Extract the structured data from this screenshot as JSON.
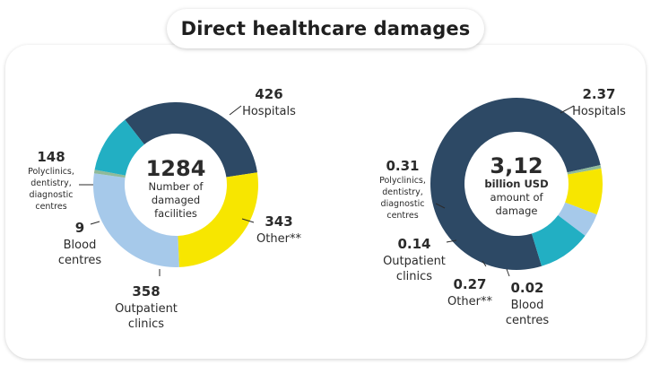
{
  "title": "Direct healthcare damages",
  "colors": {
    "hospitals": "#2d4965",
    "other": "#f7e600",
    "outpatient": "#a6c9ea",
    "blood": "#8fba9a",
    "polyclinics": "#22afc3"
  },
  "chart_data": [
    {
      "type": "pie",
      "center": {
        "value": "1284",
        "label_lines": [
          "Number of",
          "damaged",
          "facilities"
        ]
      },
      "slices": [
        {
          "key": "hospitals",
          "value": 426,
          "value_label": "426",
          "label_lines": [
            "Hospitals"
          ]
        },
        {
          "key": "other",
          "value": 343,
          "value_label": "343",
          "label_lines": [
            "Other**"
          ]
        },
        {
          "key": "outpatient",
          "value": 358,
          "value_label": "358",
          "label_lines": [
            "Outpatient",
            "clinics"
          ]
        },
        {
          "key": "blood",
          "value": 9,
          "value_label": "9",
          "label_lines": [
            "Blood",
            "centres"
          ]
        },
        {
          "key": "polyclinics",
          "value": 148,
          "value_label": "148",
          "label_lines": [
            "Polyclinics,",
            "dentistry,",
            "diagnostic",
            "centres"
          ]
        }
      ]
    },
    {
      "type": "pie",
      "center": {
        "value": "3,12",
        "label_lines": [
          "billion USD",
          "amount of",
          "damage"
        ]
      },
      "slices": [
        {
          "key": "hospitals",
          "value": 2.37,
          "value_label": "2.37",
          "label_lines": [
            "Hospitals"
          ]
        },
        {
          "key": "blood",
          "value": 0.02,
          "value_label": "0.02",
          "label_lines": [
            "Blood",
            "centres"
          ]
        },
        {
          "key": "other",
          "value": 0.27,
          "value_label": "0.27",
          "label_lines": [
            "Other**"
          ]
        },
        {
          "key": "outpatient",
          "value": 0.14,
          "value_label": "0.14",
          "label_lines": [
            "Outpatient",
            "clinics"
          ]
        },
        {
          "key": "polyclinics",
          "value": 0.31,
          "value_label": "0.31",
          "label_lines": [
            "Polyclinics,",
            "dentistry,",
            "diagnostic",
            "centres"
          ]
        }
      ]
    }
  ]
}
